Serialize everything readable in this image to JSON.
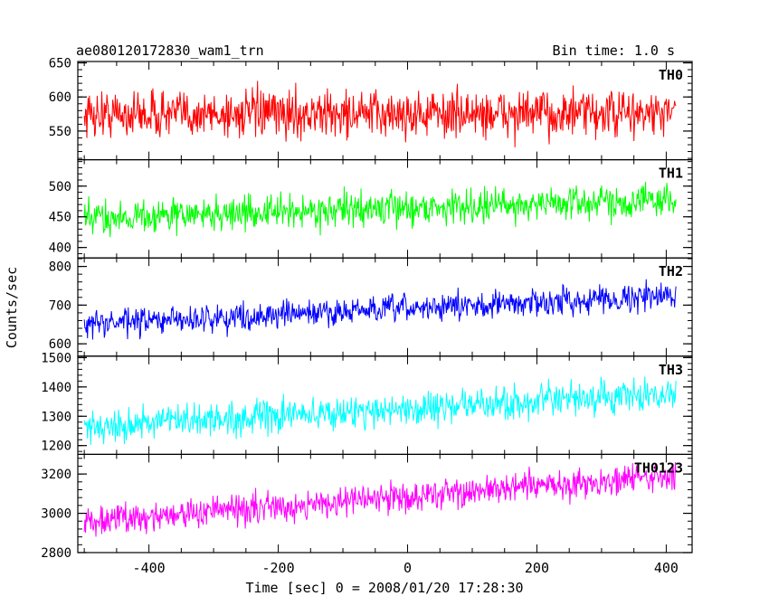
{
  "header": {
    "left_title": "ae080120172830_wam1_trn",
    "right_title": "Bin time: 1.0 s"
  },
  "chart_data": {
    "type": "line",
    "xlabel": "Time [sec] 0 = 2008/01/20 17:28:30",
    "ylabel": "Counts/sec",
    "xlim": [
      -510,
      440
    ],
    "x_range": [
      -500,
      415
    ],
    "bin_time_s": 1.0,
    "x_ticks": [
      "-400",
      "-200",
      "0",
      "200",
      "400"
    ],
    "x_tick_values": [
      -400,
      -200,
      0,
      200,
      400
    ],
    "panels": [
      {
        "name": "TH0",
        "color": "#ff0000",
        "ylim": [
          508,
          652
        ],
        "ticks": [
          550,
          600,
          650
        ],
        "tick_labels": [
          "550",
          "600",
          "650"
        ],
        "level_start": 575,
        "level_end": 575,
        "noise": 28,
        "clip_to_axes": true
      },
      {
        "name": "TH1",
        "color": "#00ff00",
        "ylim": [
          383,
          543
        ],
        "ticks": [
          400,
          450,
          500
        ],
        "tick_labels": [
          "400",
          "450",
          "500"
        ],
        "level_start": 448,
        "level_end": 478,
        "noise": 22
      },
      {
        "name": "TH2",
        "color": "#0000ff",
        "ylim": [
          568,
          822
        ],
        "ticks": [
          600,
          700,
          800
        ],
        "tick_labels": [
          "600",
          "700",
          "800"
        ],
        "level_start": 650,
        "level_end": 725,
        "noise": 28
      },
      {
        "name": "TH3",
        "color": "#00ffff",
        "ylim": [
          1170,
          1505
        ],
        "ticks": [
          1200,
          1300,
          1400,
          1500
        ],
        "tick_labels": [
          "1200",
          "1300",
          "1400",
          "1500"
        ],
        "level_start": 1265,
        "level_end": 1375,
        "noise": 45
      },
      {
        "name": "TH0123",
        "color": "#ff00ff",
        "ylim": [
          2800,
          3300
        ],
        "ticks": [
          2800,
          3000,
          3200
        ],
        "tick_labels": [
          "2800",
          "3000",
          "3200"
        ],
        "level_start": 2960,
        "level_end": 3190,
        "noise": 62
      }
    ]
  }
}
